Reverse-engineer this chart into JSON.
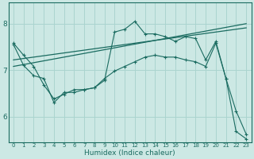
{
  "xlabel": "Humidex (Indice chaleur)",
  "bg_color": "#cce8e4",
  "grid_color": "#aad4cf",
  "line_color": "#1a6b60",
  "xlim": [
    -0.5,
    23.5
  ],
  "ylim": [
    5.45,
    8.45
  ],
  "yticks": [
    6,
    7,
    8
  ],
  "xticks": [
    0,
    1,
    2,
    3,
    4,
    5,
    6,
    7,
    8,
    9,
    10,
    11,
    12,
    13,
    14,
    15,
    16,
    17,
    18,
    19,
    20,
    21,
    22,
    23
  ],
  "line1_y": [
    7.22,
    7.25,
    7.28,
    7.31,
    7.34,
    7.37,
    7.4,
    7.43,
    7.46,
    7.49,
    7.52,
    7.55,
    7.58,
    7.61,
    7.64,
    7.67,
    7.7,
    7.73,
    7.76,
    7.79,
    7.82,
    7.85,
    7.88,
    7.91
  ],
  "line2_y": [
    7.08,
    7.12,
    7.16,
    7.2,
    7.24,
    7.28,
    7.32,
    7.36,
    7.4,
    7.44,
    7.48,
    7.52,
    7.56,
    7.6,
    7.64,
    7.68,
    7.72,
    7.76,
    7.8,
    7.84,
    7.88,
    7.92,
    7.96,
    8.0
  ],
  "line3_x": [
    0,
    1,
    2,
    3,
    4,
    5,
    6,
    7,
    8,
    9,
    10,
    11,
    12,
    13,
    14,
    15,
    16,
    17,
    18,
    19,
    20,
    21,
    22,
    23
  ],
  "line3_y": [
    7.55,
    7.1,
    6.88,
    6.82,
    6.3,
    6.52,
    6.52,
    6.58,
    6.62,
    6.78,
    7.82,
    7.88,
    8.05,
    7.78,
    7.78,
    7.72,
    7.62,
    7.72,
    7.68,
    7.22,
    7.62,
    6.82,
    5.68,
    5.52
  ],
  "line4_x": [
    0,
    1,
    2,
    3,
    4,
    5,
    6,
    7,
    8,
    9,
    10,
    11,
    12,
    13,
    14,
    15,
    16,
    17,
    18,
    19,
    20,
    21,
    22,
    23
  ],
  "line4_y": [
    7.58,
    7.32,
    7.08,
    6.68,
    6.38,
    6.48,
    6.58,
    6.58,
    6.62,
    6.82,
    6.98,
    7.08,
    7.18,
    7.28,
    7.32,
    7.28,
    7.28,
    7.22,
    7.18,
    7.08,
    7.58,
    6.82,
    6.12,
    5.62
  ]
}
